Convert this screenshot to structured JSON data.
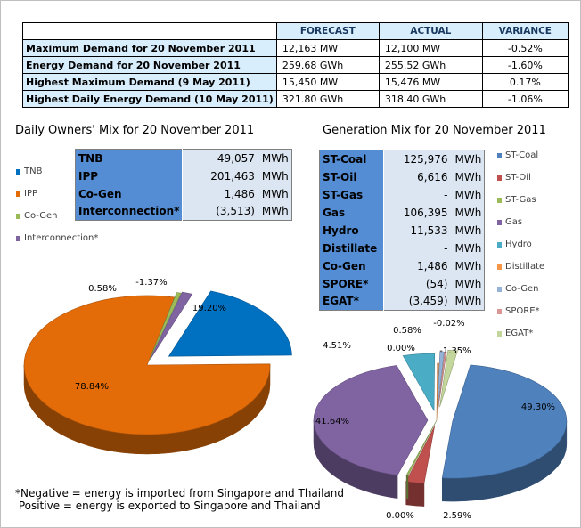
{
  "summary": {
    "headers": [
      "FORECAST",
      "ACTUAL",
      "VARIANCE"
    ],
    "rows": [
      {
        "label": "Maximum Demand for 20 November 2011",
        "forecast": "12,163  MW",
        "actual": "12,100  MW",
        "variance": "-0.52%"
      },
      {
        "label": "Energy Demand for 20 November 2011",
        "forecast": "259.68  GWh",
        "actual": "255.52  GWh",
        "variance": "-1.60%"
      },
      {
        "label": "Highest Maximum Demand (9 May 2011)",
        "forecast": "15,450  MW",
        "actual": "15,476  MW",
        "variance": "0.17%"
      },
      {
        "label": "Highest Daily Energy Demand (10 May 2011)",
        "forecast": "321.80  GWh",
        "actual": "318.40  GWh",
        "variance": "-1.06%"
      }
    ]
  },
  "owners": {
    "title": "Daily Owners' Mix for 20 November 2011",
    "unit": "MWh",
    "rows": [
      {
        "name": "TNB",
        "value": "49,057"
      },
      {
        "name": "IPP",
        "value": "201,463"
      },
      {
        "name": "Co-Gen",
        "value": "1,486"
      },
      {
        "name": "Interconnection*",
        "value": "(3,513)"
      }
    ]
  },
  "generation": {
    "title": "Generation Mix for 20 November 2011",
    "unit": "MWh",
    "rows": [
      {
        "name": "ST-Coal",
        "value": "125,976"
      },
      {
        "name": "ST-Oil",
        "value": "6,616"
      },
      {
        "name": "ST-Gas",
        "value": "-"
      },
      {
        "name": "Gas",
        "value": "106,395"
      },
      {
        "name": "Hydro",
        "value": "11,533"
      },
      {
        "name": "Distillate",
        "value": "-"
      },
      {
        "name": "Co-Gen",
        "value": "1,486"
      },
      {
        "name": "SPORE*",
        "value": "(54)"
      },
      {
        "name": "EGAT*",
        "value": "(3,459)"
      }
    ]
  },
  "note": {
    "line1": "*Negative = energy is imported from Singapore and Thailand",
    "line2": " Positive = energy is exported to Singapore and Thailand"
  },
  "chart_data": [
    {
      "type": "pie",
      "title": "Daily Owners' Mix for 20 November 2011",
      "legend_position": "left",
      "categories": [
        "TNB",
        "IPP",
        "Co-Gen",
        "Interconnection*"
      ],
      "values": [
        19.2,
        78.84,
        0.58,
        -1.37
      ],
      "labels": [
        "19.20%",
        "78.84%",
        "0.58%",
        "-1.37%"
      ],
      "colors": [
        "#0070c0",
        "#e36c09",
        "#9bbb59",
        "#8064a2"
      ]
    },
    {
      "type": "pie",
      "title": "Generation Mix for 20 November 2011",
      "legend_position": "right",
      "categories": [
        "ST-Coal",
        "ST-Oil",
        "ST-Gas",
        "Gas",
        "Hydro",
        "Distillate",
        "Co-Gen",
        "SPORE*",
        "EGAT*"
      ],
      "values": [
        49.3,
        2.59,
        0.0,
        41.64,
        4.51,
        0.0,
        0.58,
        -0.02,
        -1.35
      ],
      "labels": [
        "49.30%",
        "2.59%",
        "0.00%",
        "41.64%",
        "4.51%",
        "0.00%",
        "0.58%",
        "-0.02%",
        "-1.35%"
      ],
      "colors": [
        "#4f81bd",
        "#c0504d",
        "#9bbb59",
        "#8064a2",
        "#4bacc6",
        "#f79646",
        "#95b3d7",
        "#d99694",
        "#c3d69b"
      ]
    }
  ]
}
